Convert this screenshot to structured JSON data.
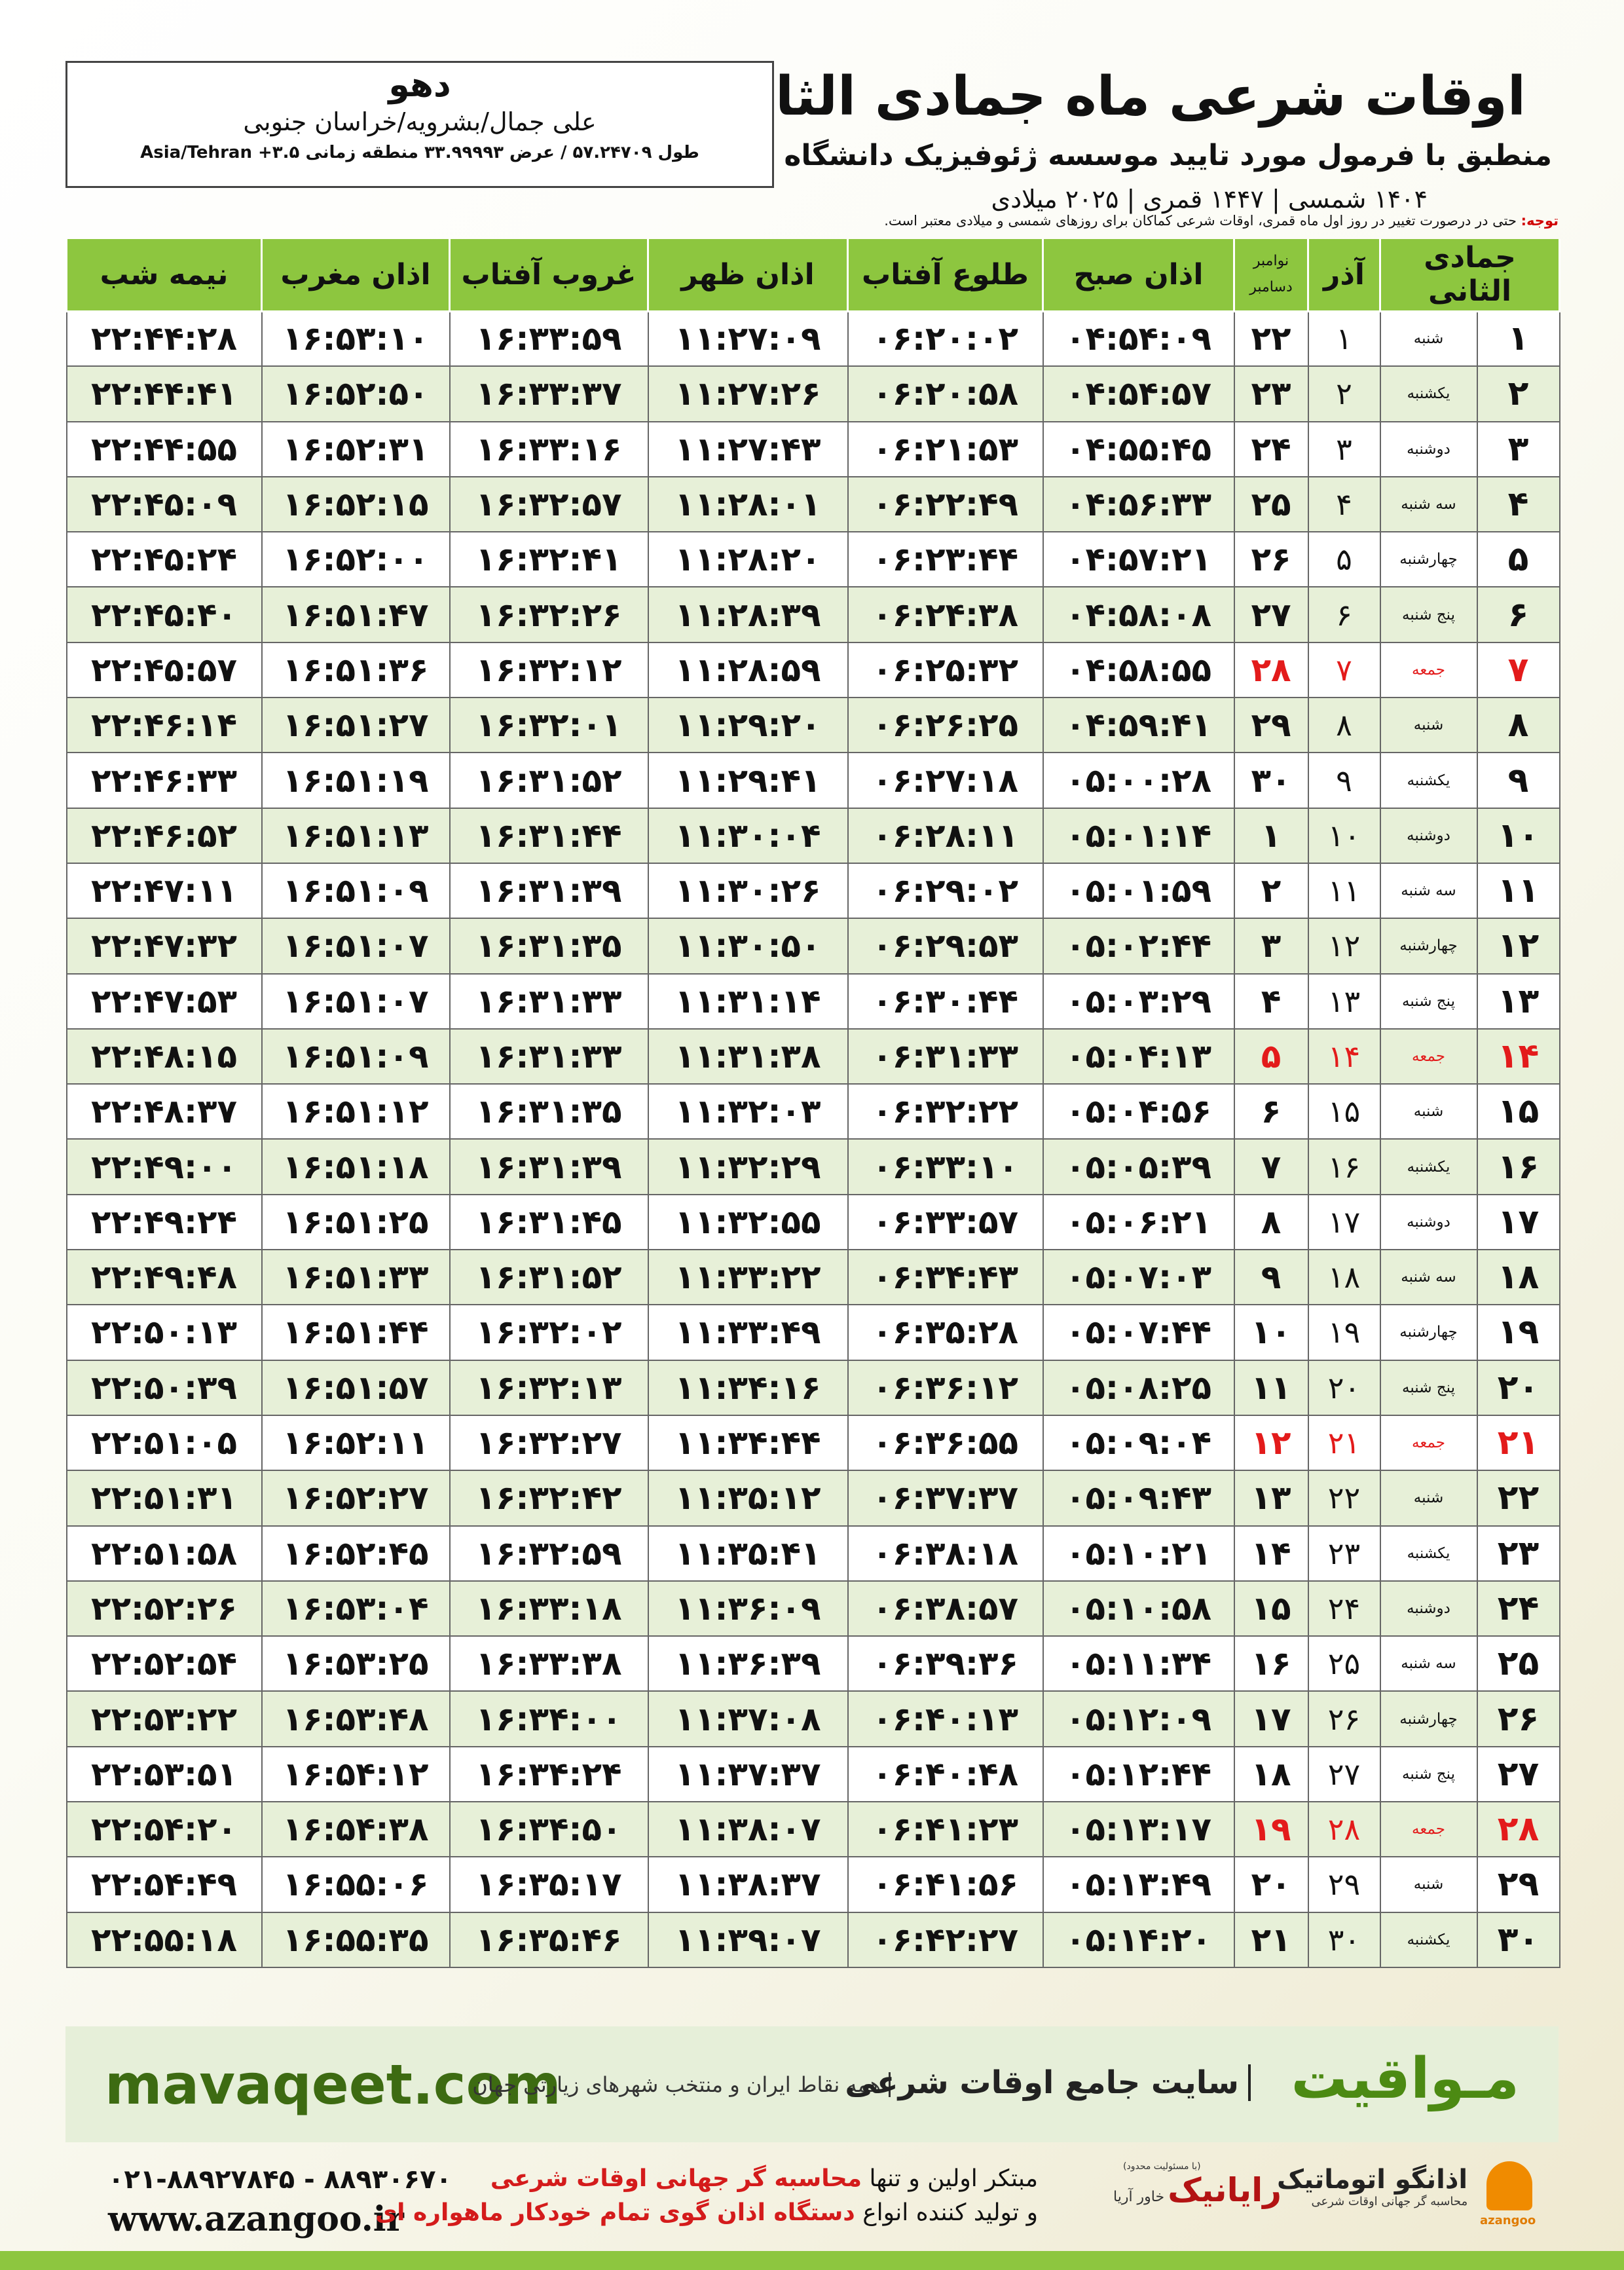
{
  "header": {
    "title": "اوقات شرعی ماه جمادی الثانی",
    "subtitle": "منطبق با فرمول مورد تایید موسسه ژئوفیزیک دانشگاه تهران",
    "dates": "۱۴۰۴ شمسی | ۱۴۴۷ قمری | ۲۰۲۵ میلادی"
  },
  "location": {
    "name": "دهو",
    "address": "علی جمال/بشرویه/خراسان جنوبی",
    "coords": "طول ۵۷.۲۴۷۰۹ / عرض ۳۳.۹۹۹۹۳ منطقه زمانی ۳.۵+ Asia/Tehran"
  },
  "note": {
    "label": "توجه:",
    "text": "حتی در درصورت تغییر در روز اول ماه قمری، اوقات شرعی کماکان برای روزهای شمسی و میلادی معتبر است."
  },
  "table": {
    "columns": [
      "جمادی الثانی",
      "آذر",
      [
        "نوامبر",
        "دسامبر"
      ],
      "اذان صبح",
      "طلوع آفتاب",
      "اذان ظهر",
      "غروب آفتاب",
      "اذان مغرب",
      "نیمه شب"
    ],
    "rows": [
      [
        "۱",
        "شنبه",
        "۱",
        "۲۲",
        "۰۴:۵۴:۰۹",
        "۰۶:۲۰:۰۲",
        "۱۱:۲۷:۰۹",
        "۱۶:۳۳:۵۹",
        "۱۶:۵۳:۱۰",
        "۲۲:۴۴:۲۸"
      ],
      [
        "۲",
        "یکشنبه",
        "۲",
        "۲۳",
        "۰۴:۵۴:۵۷",
        "۰۶:۲۰:۵۸",
        "۱۱:۲۷:۲۶",
        "۱۶:۳۳:۳۷",
        "۱۶:۵۲:۵۰",
        "۲۲:۴۴:۴۱"
      ],
      [
        "۳",
        "دوشنبه",
        "۳",
        "۲۴",
        "۰۴:۵۵:۴۵",
        "۰۶:۲۱:۵۳",
        "۱۱:۲۷:۴۳",
        "۱۶:۳۳:۱۶",
        "۱۶:۵۲:۳۱",
        "۲۲:۴۴:۵۵"
      ],
      [
        "۴",
        "سه شنبه",
        "۴",
        "۲۵",
        "۰۴:۵۶:۳۳",
        "۰۶:۲۲:۴۹",
        "۱۱:۲۸:۰۱",
        "۱۶:۳۲:۵۷",
        "۱۶:۵۲:۱۵",
        "۲۲:۴۵:۰۹"
      ],
      [
        "۵",
        "چهارشنبه",
        "۵",
        "۲۶",
        "۰۴:۵۷:۲۱",
        "۰۶:۲۳:۴۴",
        "۱۱:۲۸:۲۰",
        "۱۶:۳۲:۴۱",
        "۱۶:۵۲:۰۰",
        "۲۲:۴۵:۲۴"
      ],
      [
        "۶",
        "پنج شنبه",
        "۶",
        "۲۷",
        "۰۴:۵۸:۰۸",
        "۰۶:۲۴:۳۸",
        "۱۱:۲۸:۳۹",
        "۱۶:۳۲:۲۶",
        "۱۶:۵۱:۴۷",
        "۲۲:۴۵:۴۰"
      ],
      [
        "۷",
        "جمعه",
        "۷",
        "۲۸",
        "۰۴:۵۸:۵۵",
        "۰۶:۲۵:۳۲",
        "۱۱:۲۸:۵۹",
        "۱۶:۳۲:۱۲",
        "۱۶:۵۱:۳۶",
        "۲۲:۴۵:۵۷"
      ],
      [
        "۸",
        "شنبه",
        "۸",
        "۲۹",
        "۰۴:۵۹:۴۱",
        "۰۶:۲۶:۲۵",
        "۱۱:۲۹:۲۰",
        "۱۶:۳۲:۰۱",
        "۱۶:۵۱:۲۷",
        "۲۲:۴۶:۱۴"
      ],
      [
        "۹",
        "یکشنبه",
        "۹",
        "۳۰",
        "۰۵:۰۰:۲۸",
        "۰۶:۲۷:۱۸",
        "۱۱:۲۹:۴۱",
        "۱۶:۳۱:۵۲",
        "۱۶:۵۱:۱۹",
        "۲۲:۴۶:۳۳"
      ],
      [
        "۱۰",
        "دوشنبه",
        "۱۰",
        "۱",
        "۰۵:۰۱:۱۴",
        "۰۶:۲۸:۱۱",
        "۱۱:۳۰:۰۴",
        "۱۶:۳۱:۴۴",
        "۱۶:۵۱:۱۳",
        "۲۲:۴۶:۵۲"
      ],
      [
        "۱۱",
        "سه شنبه",
        "۱۱",
        "۲",
        "۰۵:۰۱:۵۹",
        "۰۶:۲۹:۰۲",
        "۱۱:۳۰:۲۶",
        "۱۶:۳۱:۳۹",
        "۱۶:۵۱:۰۹",
        "۲۲:۴۷:۱۱"
      ],
      [
        "۱۲",
        "چهارشنبه",
        "۱۲",
        "۳",
        "۰۵:۰۲:۴۴",
        "۰۶:۲۹:۵۳",
        "۱۱:۳۰:۵۰",
        "۱۶:۳۱:۳۵",
        "۱۶:۵۱:۰۷",
        "۲۲:۴۷:۳۲"
      ],
      [
        "۱۳",
        "پنج شنبه",
        "۱۳",
        "۴",
        "۰۵:۰۳:۲۹",
        "۰۶:۳۰:۴۴",
        "۱۱:۳۱:۱۴",
        "۱۶:۳۱:۳۳",
        "۱۶:۵۱:۰۷",
        "۲۲:۴۷:۵۳"
      ],
      [
        "۱۴",
        "جمعه",
        "۱۴",
        "۵",
        "۰۵:۰۴:۱۳",
        "۰۶:۳۱:۳۳",
        "۱۱:۳۱:۳۸",
        "۱۶:۳۱:۳۳",
        "۱۶:۵۱:۰۹",
        "۲۲:۴۸:۱۵"
      ],
      [
        "۱۵",
        "شنبه",
        "۱۵",
        "۶",
        "۰۵:۰۴:۵۶",
        "۰۶:۳۲:۲۲",
        "۱۱:۳۲:۰۳",
        "۱۶:۳۱:۳۵",
        "۱۶:۵۱:۱۲",
        "۲۲:۴۸:۳۷"
      ],
      [
        "۱۶",
        "یکشنبه",
        "۱۶",
        "۷",
        "۰۵:۰۵:۳۹",
        "۰۶:۳۳:۱۰",
        "۱۱:۳۲:۲۹",
        "۱۶:۳۱:۳۹",
        "۱۶:۵۱:۱۸",
        "۲۲:۴۹:۰۰"
      ],
      [
        "۱۷",
        "دوشنبه",
        "۱۷",
        "۸",
        "۰۵:۰۶:۲۱",
        "۰۶:۳۳:۵۷",
        "۱۱:۳۲:۵۵",
        "۱۶:۳۱:۴۵",
        "۱۶:۵۱:۲۵",
        "۲۲:۴۹:۲۴"
      ],
      [
        "۱۸",
        "سه شنبه",
        "۱۸",
        "۹",
        "۰۵:۰۷:۰۳",
        "۰۶:۳۴:۴۳",
        "۱۱:۳۳:۲۲",
        "۱۶:۳۱:۵۲",
        "۱۶:۵۱:۳۳",
        "۲۲:۴۹:۴۸"
      ],
      [
        "۱۹",
        "چهارشنبه",
        "۱۹",
        "۱۰",
        "۰۵:۰۷:۴۴",
        "۰۶:۳۵:۲۸",
        "۱۱:۳۳:۴۹",
        "۱۶:۳۲:۰۲",
        "۱۶:۵۱:۴۴",
        "۲۲:۵۰:۱۳"
      ],
      [
        "۲۰",
        "پنج شنبه",
        "۲۰",
        "۱۱",
        "۰۵:۰۸:۲۵",
        "۰۶:۳۶:۱۲",
        "۱۱:۳۴:۱۶",
        "۱۶:۳۲:۱۳",
        "۱۶:۵۱:۵۷",
        "۲۲:۵۰:۳۹"
      ],
      [
        "۲۱",
        "جمعه",
        "۲۱",
        "۱۲",
        "۰۵:۰۹:۰۴",
        "۰۶:۳۶:۵۵",
        "۱۱:۳۴:۴۴",
        "۱۶:۳۲:۲۷",
        "۱۶:۵۲:۱۱",
        "۲۲:۵۱:۰۵"
      ],
      [
        "۲۲",
        "شنبه",
        "۲۲",
        "۱۳",
        "۰۵:۰۹:۴۳",
        "۰۶:۳۷:۳۷",
        "۱۱:۳۵:۱۲",
        "۱۶:۳۲:۴۲",
        "۱۶:۵۲:۲۷",
        "۲۲:۵۱:۳۱"
      ],
      [
        "۲۳",
        "یکشنبه",
        "۲۳",
        "۱۴",
        "۰۵:۱۰:۲۱",
        "۰۶:۳۸:۱۸",
        "۱۱:۳۵:۴۱",
        "۱۶:۳۲:۵۹",
        "۱۶:۵۲:۴۵",
        "۲۲:۵۱:۵۸"
      ],
      [
        "۲۴",
        "دوشنبه",
        "۲۴",
        "۱۵",
        "۰۵:۱۰:۵۸",
        "۰۶:۳۸:۵۷",
        "۱۱:۳۶:۰۹",
        "۱۶:۳۳:۱۸",
        "۱۶:۵۳:۰۴",
        "۲۲:۵۲:۲۶"
      ],
      [
        "۲۵",
        "سه شنبه",
        "۲۵",
        "۱۶",
        "۰۵:۱۱:۳۴",
        "۰۶:۳۹:۳۶",
        "۱۱:۳۶:۳۹",
        "۱۶:۳۳:۳۸",
        "۱۶:۵۳:۲۵",
        "۲۲:۵۲:۵۴"
      ],
      [
        "۲۶",
        "چهارشنبه",
        "۲۶",
        "۱۷",
        "۰۵:۱۲:۰۹",
        "۰۶:۴۰:۱۳",
        "۱۱:۳۷:۰۸",
        "۱۶:۳۴:۰۰",
        "۱۶:۵۳:۴۸",
        "۲۲:۵۳:۲۲"
      ],
      [
        "۲۷",
        "پنج شنبه",
        "۲۷",
        "۱۸",
        "۰۵:۱۲:۴۴",
        "۰۶:۴۰:۴۸",
        "۱۱:۳۷:۳۷",
        "۱۶:۳۴:۲۴",
        "۱۶:۵۴:۱۲",
        "۲۲:۵۳:۵۱"
      ],
      [
        "۲۸",
        "جمعه",
        "۲۸",
        "۱۹",
        "۰۵:۱۳:۱۷",
        "۰۶:۴۱:۲۳",
        "۱۱:۳۸:۰۷",
        "۱۶:۳۴:۵۰",
        "۱۶:۵۴:۳۸",
        "۲۲:۵۴:۲۰"
      ],
      [
        "۲۹",
        "شنبه",
        "۲۹",
        "۲۰",
        "۰۵:۱۳:۴۹",
        "۰۶:۴۱:۵۶",
        "۱۱:۳۸:۳۷",
        "۱۶:۳۵:۱۷",
        "۱۶:۵۵:۰۶",
        "۲۲:۵۴:۴۹"
      ],
      [
        "۳۰",
        "یکشنبه",
        "۳۰",
        "۲۱",
        "۰۵:۱۴:۲۰",
        "۰۶:۴۲:۲۷",
        "۱۱:۳۹:۰۷",
        "۱۶:۳۵:۴۶",
        "۱۶:۵۵:۳۵",
        "۲۲:۵۵:۱۸"
      ]
    ]
  },
  "banner": {
    "brand": "مـواقیت",
    "slogan": "سایت جامع اوقات شرعی",
    "coverage": "همه نقاط ایران و منتخب شهرهای زیارتی جهان",
    "site": "mavaqeet.com"
  },
  "contact": {
    "phones": "۰۲۱-۸۸۹۲۷۸۴۵ - ۸۸۹۳۰۶۷۰",
    "url": "www.azangoo.ir",
    "line1": [
      "مبتکر اولین و تنها",
      "محاسبه گر جهانی اوقات شرعی"
    ],
    "line2": [
      "و تولید کننده انواع",
      "دستگاه اذان گوی تمام خودکار ماهواره ای"
    ]
  },
  "logos": {
    "rayanik": "رایانیک",
    "khavar": "خاور آریا",
    "limited": "(با مسئولیت محدود)",
    "azangoo": "اذانگو اتوماتیک",
    "azangoo_sub": "محاسبه گر جهانی اوقات شرعی",
    "azangoo_latin": "azangoo"
  }
}
